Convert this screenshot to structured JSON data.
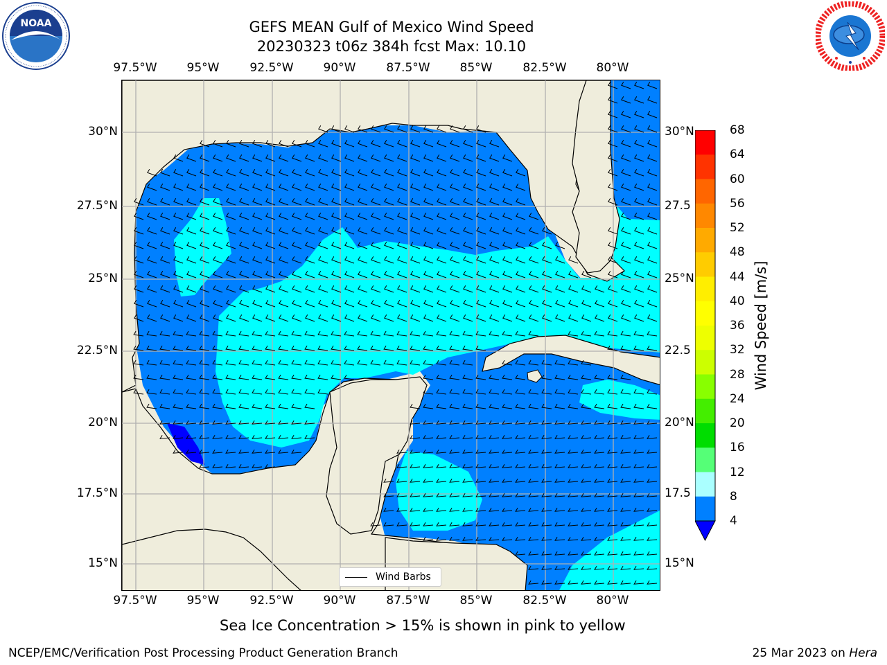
{
  "header": {
    "title_line1": "GEFS MEAN Gulf of Mexico Wind Speed",
    "title_line2": "20230323 t06z 384h fcst   Max: 10.10"
  },
  "logos": {
    "left": {
      "name": "noaa-logo",
      "text": "NOAA",
      "ring_text": "NATIONAL OCEANIC AND ATMOSPHERIC ADMINISTRATION · U.S. DEPARTMENT OF COMMERCE"
    },
    "right": {
      "name": "nws-logo",
      "ring_text": "NATIONAL WEATHER SERVICE"
    }
  },
  "map": {
    "lon_labels_top": [
      "97.5°W",
      "95°W",
      "92.5°W",
      "90°W",
      "87.5°W",
      "85°W",
      "82.5°W",
      "80°W"
    ],
    "lon_labels_bottom": [
      "97.5°W",
      "95°W",
      "92.5°W",
      "90°W",
      "87.5°W",
      "85°W",
      "82.5°W",
      "80°W"
    ],
    "lat_labels_left": [
      "30°N",
      "27.5°N",
      "25°N",
      "22.5°N",
      "20°N",
      "17.5°N",
      "15°N"
    ],
    "lat_labels_right": [
      "30°N",
      "27.5",
      "25°N",
      "22.5",
      "20°N",
      "17.5",
      "15°N"
    ],
    "legend_label": "Wind Barbs",
    "colors": {
      "land": "#efeddc",
      "ocean_4_8": "#0080ff",
      "ocean_8_12": "#00ffff",
      "ocean_below_4": "#0000ff",
      "grid": "#b0b0b0"
    },
    "barb_direction": "mostly easterly to southeasterly, short barbs"
  },
  "colorbar": {
    "label": "Wind Speed [m/s]",
    "ticks": [
      "68",
      "64",
      "60",
      "56",
      "52",
      "48",
      "44",
      "40",
      "36",
      "32",
      "28",
      "24",
      "20",
      "16",
      "12",
      "8",
      "4"
    ],
    "colors": [
      "#ff0000",
      "#ff3300",
      "#ff6600",
      "#ff8800",
      "#ffaa00",
      "#ffcc00",
      "#ffee00",
      "#ffff00",
      "#eeff00",
      "#ccff00",
      "#88ff00",
      "#44ee00",
      "#00dd00",
      "#55ff77",
      "#aaffff",
      "#55ffff",
      "#00ffff",
      "#0080ff"
    ],
    "extend_color": "#0000ff"
  },
  "notes": {
    "sea_ice": "Sea Ice Concentration > 15% is shown in pink to yellow"
  },
  "footer": {
    "left": "NCEP/EMC/Verification Post Processing Product Generation Branch",
    "right_date": "25 Mar 2023 on ",
    "right_host": "Hera"
  }
}
